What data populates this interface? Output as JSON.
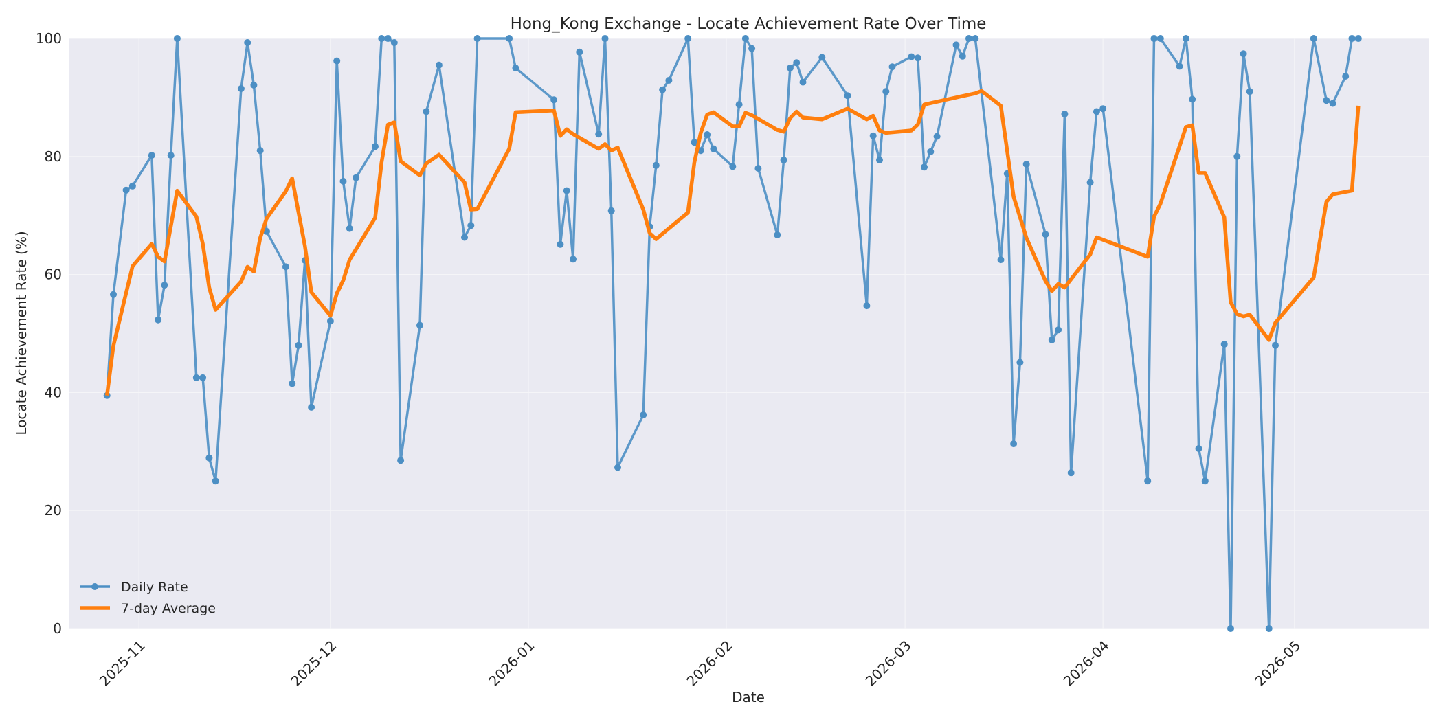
{
  "chart_data": {
    "type": "line",
    "title": "Hong_Kong Exchange - Locate Achievement Rate Over Time",
    "xlabel": "Date",
    "ylabel": "Locate Achievement Rate (%)",
    "ylim": [
      0,
      100
    ],
    "xlim": [
      "2025-10-21",
      "2026-05-22"
    ],
    "x_ticks": [
      "2025-11-01",
      "2025-12-01",
      "2026-01-01",
      "2026-02-01",
      "2026-03-01",
      "2026-04-01",
      "2026-05-01"
    ],
    "x_tick_labels": [
      "2025-11",
      "2025-12",
      "2026-01",
      "2026-02",
      "2026-03",
      "2026-04",
      "2026-05"
    ],
    "y_ticks": [
      0,
      20,
      40,
      60,
      80,
      100
    ],
    "y_tick_labels": [
      "0",
      "20",
      "40",
      "60",
      "80",
      "100"
    ],
    "grid": true,
    "legend_position": "lower-left",
    "colors": {
      "background": "#EAEAF2",
      "grid": "#F5F5F8",
      "daily": "#4C8FC4",
      "average": "#FF7F0E"
    },
    "series": [
      {
        "name": "Daily Rate",
        "marker": "circle",
        "x": [
          "2025-10-27",
          "2025-10-28",
          "2025-10-30",
          "2025-10-31",
          "2025-11-03",
          "2025-11-04",
          "2025-11-05",
          "2025-11-06",
          "2025-11-07",
          "2025-11-10",
          "2025-11-11",
          "2025-11-12",
          "2025-11-13",
          "2025-11-17",
          "2025-11-18",
          "2025-11-19",
          "2025-11-20",
          "2025-11-21",
          "2025-11-24",
          "2025-11-25",
          "2025-11-26",
          "2025-11-27",
          "2025-11-28",
          "2025-12-01",
          "2025-12-02",
          "2025-12-03",
          "2025-12-04",
          "2025-12-05",
          "2025-12-08",
          "2025-12-09",
          "2025-12-10",
          "2025-12-11",
          "2025-12-12",
          "2025-12-15",
          "2025-12-16",
          "2025-12-18",
          "2025-12-22",
          "2025-12-23",
          "2025-12-24",
          "2025-12-29",
          "2025-12-30",
          "2026-01-05",
          "2026-01-06",
          "2026-01-07",
          "2026-01-08",
          "2026-01-09",
          "2026-01-12",
          "2026-01-13",
          "2026-01-14",
          "2026-01-15",
          "2026-01-19",
          "2026-01-20",
          "2026-01-21",
          "2026-01-22",
          "2026-01-23",
          "2026-01-26",
          "2026-01-27",
          "2026-01-28",
          "2026-01-29",
          "2026-01-30",
          "2026-02-02",
          "2026-02-03",
          "2026-02-04",
          "2026-02-05",
          "2026-02-06",
          "2026-02-09",
          "2026-02-10",
          "2026-02-11",
          "2026-02-12",
          "2026-02-13",
          "2026-02-16",
          "2026-02-20",
          "2026-02-23",
          "2026-02-24",
          "2026-02-25",
          "2026-02-26",
          "2026-02-27",
          "2026-03-02",
          "2026-03-03",
          "2026-03-04",
          "2026-03-05",
          "2026-03-06",
          "2026-03-09",
          "2026-03-10",
          "2026-03-11",
          "2026-03-12",
          "2026-03-16",
          "2026-03-17",
          "2026-03-18",
          "2026-03-19",
          "2026-03-20",
          "2026-03-23",
          "2026-03-24",
          "2026-03-25",
          "2026-03-26",
          "2026-03-27",
          "2026-03-30",
          "2026-03-31",
          "2026-04-01",
          "2026-04-08",
          "2026-04-09",
          "2026-04-10",
          "2026-04-13",
          "2026-04-14",
          "2026-04-15",
          "2026-04-16",
          "2026-04-17",
          "2026-04-20",
          "2026-04-21",
          "2026-04-22",
          "2026-04-23",
          "2026-04-24",
          "2026-04-27",
          "2026-04-28",
          "2026-05-04",
          "2026-05-06",
          "2026-05-07",
          "2026-05-09",
          "2026-05-10",
          "2026-05-11"
        ],
        "values": [
          39.5,
          56.6,
          74.3,
          75,
          80.2,
          52.3,
          58.2,
          80.2,
          100,
          42.5,
          42.5,
          28.9,
          25,
          91.5,
          99.3,
          92.1,
          81,
          67.3,
          61.3,
          41.5,
          48,
          62.4,
          37.5,
          52.1,
          96.2,
          75.8,
          67.8,
          76.4,
          81.7,
          100,
          100,
          99.3,
          28.5,
          51.4,
          87.6,
          95.5,
          66.3,
          68.3,
          100,
          100,
          95,
          89.6,
          65.1,
          74.2,
          62.6,
          97.7,
          83.8,
          100,
          70.8,
          27.3,
          36.2,
          68.1,
          78.5,
          91.3,
          92.9,
          100,
          82.4,
          81,
          83.7,
          81.3,
          78.3,
          88.8,
          100,
          98.3,
          78,
          66.7,
          79.4,
          95,
          95.9,
          92.6,
          96.8,
          90.3,
          54.7,
          83.5,
          79.4,
          91,
          95.2,
          96.9,
          96.7,
          78.2,
          80.8,
          83.4,
          98.9,
          97,
          100,
          100,
          62.5,
          77.1,
          31.3,
          45.1,
          78.7,
          66.8,
          48.9,
          50.6,
          87.2,
          26.4,
          75.6,
          87.6,
          88.1,
          25,
          100,
          100,
          95.3,
          100,
          89.7,
          30.5,
          25,
          48.2,
          0,
          80,
          97.4,
          91,
          0,
          48,
          100,
          89.5,
          89,
          93.6,
          100,
          100
        ]
      },
      {
        "name": "7-day Average",
        "marker": "none",
        "x": [
          "2025-10-27",
          "2025-10-28",
          "2025-10-31",
          "2025-11-03",
          "2025-11-04",
          "2025-11-05",
          "2025-11-07",
          "2025-11-10",
          "2025-11-11",
          "2025-11-12",
          "2025-11-13",
          "2025-11-17",
          "2025-11-18",
          "2025-11-19",
          "2025-11-20",
          "2025-11-21",
          "2025-11-24",
          "2025-11-25",
          "2025-11-26",
          "2025-11-27",
          "2025-11-28",
          "2025-12-01",
          "2025-12-02",
          "2025-12-03",
          "2025-12-04",
          "2025-12-08",
          "2025-12-09",
          "2025-12-10",
          "2025-12-11",
          "2025-12-12",
          "2025-12-15",
          "2025-12-16",
          "2025-12-18",
          "2025-12-22",
          "2025-12-23",
          "2025-12-24",
          "2025-12-29",
          "2025-12-30",
          "2026-01-05",
          "2026-01-06",
          "2026-01-07",
          "2026-01-08",
          "2026-01-12",
          "2026-01-13",
          "2026-01-14",
          "2026-01-15",
          "2026-01-19",
          "2026-01-20",
          "2026-01-21",
          "2026-01-26",
          "2026-01-27",
          "2026-01-28",
          "2026-01-29",
          "2026-01-30",
          "2026-02-02",
          "2026-02-03",
          "2026-02-04",
          "2026-02-05",
          "2026-02-09",
          "2026-02-10",
          "2026-02-11",
          "2026-02-12",
          "2026-02-13",
          "2026-02-16",
          "2026-02-20",
          "2026-02-23",
          "2026-02-24",
          "2026-02-25",
          "2026-02-26",
          "2026-03-02",
          "2026-03-03",
          "2026-03-04",
          "2026-03-09",
          "2026-03-12",
          "2026-03-13",
          "2026-03-16",
          "2026-03-18",
          "2026-03-20",
          "2026-03-23",
          "2026-03-24",
          "2026-03-25",
          "2026-03-26",
          "2026-03-30",
          "2026-03-31",
          "2026-04-08",
          "2026-04-09",
          "2026-04-10",
          "2026-04-14",
          "2026-04-15",
          "2026-04-16",
          "2026-04-17",
          "2026-04-20",
          "2026-04-21",
          "2026-04-22",
          "2026-04-23",
          "2026-04-24",
          "2026-04-27",
          "2026-04-28",
          "2026-05-04",
          "2026-05-06",
          "2026-05-07",
          "2026-05-10",
          "2026-05-11"
        ],
        "values": [
          39.5,
          47.9,
          61.4,
          65.2,
          63,
          62.2,
          74.2,
          69.8,
          65.2,
          57.8,
          54,
          58.8,
          61.3,
          60.5,
          66.2,
          69.5,
          74.1,
          76.3,
          70.5,
          64.8,
          57,
          53,
          56.8,
          59,
          62.5,
          69.6,
          79,
          85.4,
          85.8,
          79.2,
          76.8,
          78.8,
          80.3,
          75.6,
          71,
          71.1,
          81.3,
          87.5,
          87.8,
          83.5,
          84.6,
          83.8,
          81.3,
          82.1,
          81,
          81.5,
          71,
          67,
          66,
          70.5,
          79,
          84,
          87.1,
          87.5,
          85.1,
          85.1,
          87.4,
          87,
          84.5,
          84.2,
          86.5,
          87.6,
          86.6,
          86.3,
          88.1,
          86.3,
          86.9,
          84.4,
          84,
          84.4,
          85.4,
          88.8,
          90,
          90.7,
          91.1,
          88.6,
          73.2,
          66.2,
          58.9,
          57.2,
          58.4,
          57.8,
          63.4,
          66.3,
          63,
          69.8,
          72,
          85,
          85.3,
          77.2,
          77.2,
          69.7,
          55.3,
          53.3,
          52.9,
          53.2,
          48.9,
          51.8,
          59.5,
          72.3,
          73.6,
          74.2,
          88.6
        ]
      }
    ]
  }
}
